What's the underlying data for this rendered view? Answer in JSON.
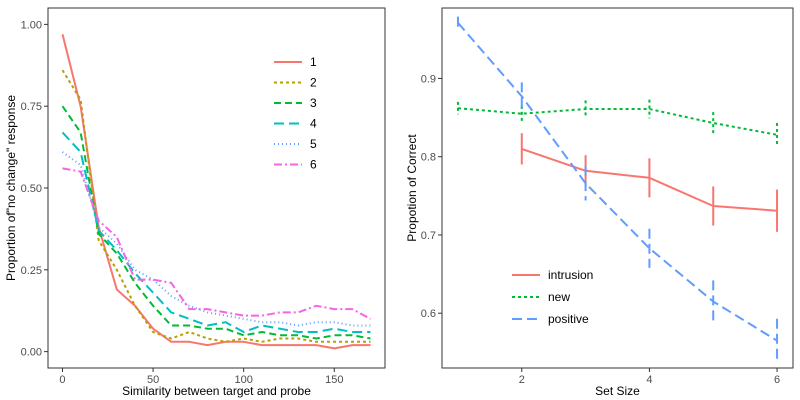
{
  "chart_data": [
    {
      "type": "line",
      "xlabel": "Similarity between target and probe",
      "ylabel": "Proportion of\"no change\" response",
      "xlim": [
        -8,
        178
      ],
      "ylim": [
        -0.05,
        1.05
      ],
      "xticks": [
        0,
        50,
        100,
        150
      ],
      "yticks": [
        0.0,
        0.25,
        0.5,
        0.75,
        1.0
      ],
      "ytick_labels": [
        "0.00",
        "0.25",
        "0.50",
        "0.75",
        "1.00"
      ],
      "grid": false,
      "legend_position": "top-right",
      "x": [
        0,
        10,
        20,
        30,
        40,
        50,
        60,
        70,
        80,
        90,
        100,
        110,
        120,
        130,
        140,
        150,
        160,
        170
      ],
      "series": [
        {
          "name": "1",
          "color": "#F8766D",
          "dash": "solid",
          "values": [
            0.97,
            0.75,
            0.38,
            0.19,
            0.14,
            0.07,
            0.03,
            0.03,
            0.02,
            0.03,
            0.03,
            0.02,
            0.02,
            0.02,
            0.02,
            0.01,
            0.02,
            0.02
          ]
        },
        {
          "name": "2",
          "color": "#B79F00",
          "dash": "3,3",
          "values": [
            0.86,
            0.77,
            0.34,
            0.25,
            0.14,
            0.06,
            0.04,
            0.06,
            0.04,
            0.03,
            0.04,
            0.03,
            0.04,
            0.04,
            0.03,
            0.03,
            0.03,
            0.03
          ]
        },
        {
          "name": "3",
          "color": "#00BA38",
          "dash": "7,4",
          "values": [
            0.75,
            0.67,
            0.36,
            0.3,
            0.21,
            0.14,
            0.08,
            0.08,
            0.07,
            0.07,
            0.05,
            0.06,
            0.05,
            0.05,
            0.04,
            0.05,
            0.05,
            0.04
          ]
        },
        {
          "name": "4",
          "color": "#00BFC4",
          "dash": "10,5",
          "values": [
            0.67,
            0.61,
            0.37,
            0.31,
            0.24,
            0.18,
            0.12,
            0.1,
            0.08,
            0.09,
            0.06,
            0.08,
            0.07,
            0.06,
            0.06,
            0.07,
            0.06,
            0.06
          ]
        },
        {
          "name": "5",
          "color": "#619CFF",
          "dash": "1,3",
          "values": [
            0.61,
            0.57,
            0.38,
            0.33,
            0.25,
            0.22,
            0.17,
            0.14,
            0.12,
            0.11,
            0.1,
            0.09,
            0.09,
            0.08,
            0.09,
            0.09,
            0.08,
            0.08
          ]
        },
        {
          "name": "6",
          "color": "#F564E3",
          "dash": "8,3,2,3",
          "values": [
            0.56,
            0.55,
            0.4,
            0.35,
            0.22,
            0.22,
            0.21,
            0.13,
            0.13,
            0.12,
            0.11,
            0.11,
            0.12,
            0.12,
            0.14,
            0.13,
            0.13,
            0.1
          ]
        }
      ]
    },
    {
      "type": "line",
      "xlabel": "Set Size",
      "ylabel": "Propotion of Correct",
      "xlim": [
        0.75,
        6.25
      ],
      "ylim": [
        0.53,
        0.99
      ],
      "xticks": [
        2,
        4,
        6
      ],
      "yticks": [
        0.6,
        0.7,
        0.8,
        0.9
      ],
      "ytick_labels": [
        "0.6",
        "0.7",
        "0.8",
        "0.9"
      ],
      "grid": false,
      "legend_position": "bottom-left",
      "error_bars": true,
      "series": [
        {
          "name": "intrusion",
          "color": "#F8766D",
          "dash": "solid",
          "x": [
            2,
            3,
            4,
            5,
            6
          ],
          "values": [
            0.81,
            0.782,
            0.773,
            0.737,
            0.731
          ],
          "error": [
            0.02,
            0.02,
            0.025,
            0.025,
            0.027
          ]
        },
        {
          "name": "new",
          "color": "#00BA38",
          "dash": "3,3",
          "x": [
            1,
            2,
            3,
            4,
            5,
            6
          ],
          "values": [
            0.862,
            0.855,
            0.861,
            0.861,
            0.843,
            0.828
          ],
          "error": [
            0.008,
            0.01,
            0.011,
            0.012,
            0.014,
            0.015
          ]
        },
        {
          "name": "positive",
          "color": "#619CFF",
          "dash": "10,5",
          "x": [
            1,
            2,
            3,
            4,
            5,
            6
          ],
          "values": [
            0.971,
            0.877,
            0.766,
            0.683,
            0.615,
            0.565
          ],
          "error": [
            0.008,
            0.018,
            0.022,
            0.025,
            0.027,
            0.028
          ]
        }
      ]
    }
  ]
}
